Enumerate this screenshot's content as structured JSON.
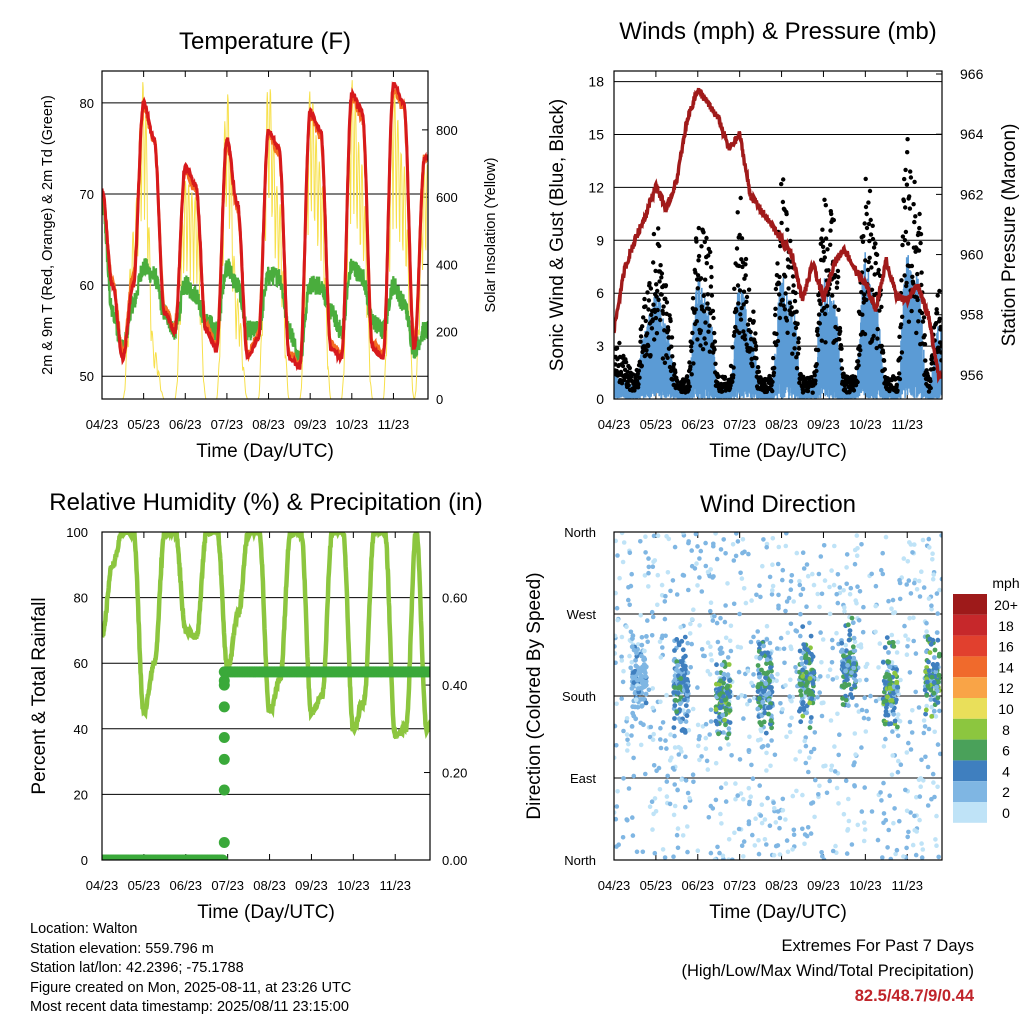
{
  "x_ticks": [
    "04/23",
    "05/23",
    "06/23",
    "07/23",
    "08/23",
    "09/23",
    "10/23",
    "11/23"
  ],
  "colors": {
    "temp2m": "#d7191c",
    "temp9m": "#f46d22",
    "dewpoint": "#4aad3d",
    "solar": "#f7e04b",
    "wind": "#000000",
    "sonic": "#5b9bd5",
    "pressure": "#a01a1a",
    "rh": "#8cc63f",
    "precip": "#3aa93a",
    "extremes": "#c0242a"
  },
  "chart_data": [
    {
      "type": "line",
      "title": "Temperature (F)",
      "xlabel": "Time (Day/UTC)",
      "ylabel": "2m & 9m T (Red, Orange) & 2m Td (Green)",
      "ylabel_right": "Solar Insolation (Yellow)",
      "ylim": [
        47.5,
        83.5
      ],
      "yticks": [
        50,
        60,
        70,
        80
      ],
      "ylim_right": [
        0,
        975
      ],
      "yticks_right": [
        0,
        200,
        400,
        600,
        800
      ],
      "x": [
        0,
        0.25,
        0.5,
        0.75,
        1,
        1.25,
        1.5,
        1.75,
        2,
        2.25,
        2.5,
        2.75,
        3,
        3.25,
        3.5,
        3.75,
        4,
        4.25,
        4.5,
        4.75,
        5,
        5.25,
        5.5,
        5.75,
        6,
        6.25,
        6.5,
        6.75,
        7,
        7.25,
        7.5,
        7.75
      ],
      "series": [
        {
          "name": "2m T",
          "values": [
            70.5,
            60,
            52,
            60,
            80,
            76,
            57,
            55,
            73,
            71,
            55,
            53,
            76,
            69,
            52,
            54,
            77,
            75,
            52,
            51,
            79,
            77,
            53,
            52,
            81,
            79,
            53,
            52,
            82,
            80,
            53,
            74
          ]
        },
        {
          "name": "9m T",
          "values": [
            70,
            60.5,
            52.5,
            61,
            79.5,
            76,
            57.5,
            55.5,
            72.5,
            70.5,
            55.5,
            53.5,
            75.5,
            68.5,
            52.5,
            54.5,
            76.5,
            74.5,
            52.5,
            51.5,
            78.5,
            76.5,
            53.5,
            52.5,
            80.5,
            78.5,
            53.5,
            52.5,
            81.5,
            79.5,
            53.5,
            74
          ]
        },
        {
          "name": "2m Td",
          "values": [
            69,
            57,
            53,
            58,
            62,
            61,
            57,
            55,
            60,
            59,
            56,
            55,
            62,
            60,
            55,
            55,
            61,
            61,
            55,
            52,
            60,
            60,
            57,
            55,
            62,
            61,
            56,
            55,
            60,
            58,
            53,
            55
          ]
        },
        {
          "name": "Solar",
          "values": [
            0,
            0,
            0,
            500,
            950,
            150,
            0,
            0,
            650,
            600,
            0,
            0,
            920,
            300,
            0,
            0,
            950,
            600,
            0,
            0,
            920,
            700,
            0,
            0,
            950,
            700,
            0,
            0,
            920,
            700,
            0,
            700
          ]
        }
      ]
    },
    {
      "type": "line",
      "title": "Winds (mph) & Pressure (mb)",
      "xlabel": "Time (Day/UTC)",
      "ylabel": "Sonic Wind & Gust (Blue, Black)",
      "ylabel_right": "Station Pressure (Maroon)",
      "ylim": [
        0,
        18.6
      ],
      "yticks": [
        0,
        3,
        6,
        9,
        12,
        15,
        18
      ],
      "ylim_right": [
        955.2,
        966.1
      ],
      "yticks_right": [
        956,
        958,
        960,
        962,
        964,
        966
      ],
      "x": [
        0,
        0.25,
        0.5,
        0.75,
        1,
        1.25,
        1.5,
        1.75,
        2,
        2.25,
        2.5,
        2.75,
        3,
        3.25,
        3.5,
        3.75,
        4,
        4.25,
        4.5,
        4.75,
        5,
        5.25,
        5.5,
        5.75,
        6,
        6.25,
        6.5,
        6.75,
        7,
        7.25,
        7.5,
        7.75
      ],
      "series": [
        {
          "name": "Sonic Wind",
          "values": [
            1,
            0.8,
            0.5,
            3,
            4.5,
            3,
            0.5,
            0.5,
            5,
            4,
            0.5,
            0.5,
            5,
            3,
            0.5,
            0.5,
            5,
            4,
            0.5,
            0.5,
            5,
            4,
            0.5,
            0.5,
            6,
            4,
            0.5,
            0.5,
            6,
            5,
            0.5,
            3
          ]
        },
        {
          "name": "Gust",
          "values": [
            3,
            2,
            1,
            5,
            8,
            5,
            1,
            1,
            8,
            7,
            1,
            1,
            9,
            5,
            1,
            1,
            10,
            7,
            1,
            1,
            9,
            8,
            1,
            1,
            10,
            8,
            1,
            1,
            12,
            9,
            1,
            5
          ]
        },
        {
          "name": "Pressure",
          "values": [
            957.5,
            959.5,
            960.5,
            961.3,
            962.3,
            961.5,
            962.5,
            964.5,
            965.5,
            965,
            964.5,
            963.5,
            964,
            962,
            961.5,
            961,
            960.5,
            960,
            958.5,
            959.7,
            958.5,
            959.7,
            960.2,
            959.5,
            959,
            958.2,
            959.8,
            958.6,
            958.5,
            959,
            958,
            956
          ]
        }
      ]
    },
    {
      "type": "line",
      "title": "Relative Humidity (%) & Precipitation (in)",
      "xlabel": "Time (Day/UTC)",
      "ylabel": "Percent & Total Rainfall",
      "ylim": [
        0,
        100
      ],
      "yticks": [
        0,
        20,
        40,
        60,
        80,
        100
      ],
      "ylim_right": [
        0,
        0.75
      ],
      "yticks_right": [
        "0.00",
        "0.20",
        "0.40",
        "0.60"
      ],
      "x": [
        0,
        0.25,
        0.5,
        0.75,
        1,
        1.25,
        1.5,
        1.75,
        2,
        2.25,
        2.5,
        2.75,
        3,
        3.25,
        3.5,
        3.75,
        4,
        4.25,
        4.5,
        4.75,
        5,
        5.25,
        5.5,
        5.75,
        6,
        6.25,
        6.5,
        6.75,
        7,
        7.25,
        7.5,
        7.75
      ],
      "series": [
        {
          "name": "RH",
          "values": [
            68,
            90,
            100,
            100,
            45,
            60,
            100,
            100,
            70,
            68,
            100,
            100,
            58,
            75,
            100,
            100,
            45,
            55,
            100,
            100,
            45,
            50,
            100,
            100,
            40,
            48,
            100,
            100,
            38,
            40,
            100,
            40
          ]
        },
        {
          "name": "Precip",
          "values": [
            0,
            0,
            0,
            0,
            0,
            0,
            0,
            0,
            0,
            0,
            0,
            0,
            0.43,
            0.43,
            0.43,
            0.43,
            0.43,
            0.43,
            0.43,
            0.43,
            0.43,
            0.43,
            0.43,
            0.43,
            0.43,
            0.43,
            0.43,
            0.43,
            0.43,
            0.43,
            0.43,
            0.43
          ]
        }
      ]
    },
    {
      "type": "scatter",
      "title": "Wind Direction",
      "xlabel": "Time (Day/UTC)",
      "ylabel": "Direction (Colored By Speed)",
      "yticks": [
        "North",
        "East",
        "South",
        "West",
        "North"
      ],
      "ylim": [
        0,
        360
      ],
      "legend": {
        "title": "mph",
        "labels": [
          "20+",
          "18",
          "16",
          "14",
          "12",
          "10",
          "8",
          "6",
          "4",
          "2",
          "0"
        ],
        "colors": [
          "#9e1a1a",
          "#c6282b",
          "#e1402e",
          "#f06a2c",
          "#f9a447",
          "#e9df5a",
          "#8cc63f",
          "#4aa15a",
          "#3f7fbf",
          "#7fb6e3",
          "#bfe3f7"
        ]
      },
      "clusters": [
        {
          "day": 0.6,
          "dir_center": 200,
          "speed": 3
        },
        {
          "day": 1.6,
          "dir_center": 190,
          "speed": 5
        },
        {
          "day": 2.6,
          "dir_center": 180,
          "speed": 7
        },
        {
          "day": 3.6,
          "dir_center": 190,
          "speed": 6
        },
        {
          "day": 4.6,
          "dir_center": 200,
          "speed": 7
        },
        {
          "day": 5.6,
          "dir_center": 210,
          "speed": 6
        },
        {
          "day": 6.6,
          "dir_center": 190,
          "speed": 7
        },
        {
          "day": 7.6,
          "dir_center": 200,
          "speed": 7
        }
      ]
    }
  ],
  "info": {
    "location": "Location: Walton",
    "elevation": "Station elevation: 559.796 m",
    "latlon": "Station lat/lon: 42.2396; -75.1788",
    "created": "Figure created on Mon, 2025-08-11, at 23:26 UTC",
    "recent": "Most recent data timestamp: 2025/08/11 23:15:00"
  },
  "extremes": {
    "title": "Extremes For Past 7 Days",
    "subtitle": "(High/Low/Max Wind/Total Precipitation)",
    "values": "82.5/48.7/9/0.44"
  }
}
